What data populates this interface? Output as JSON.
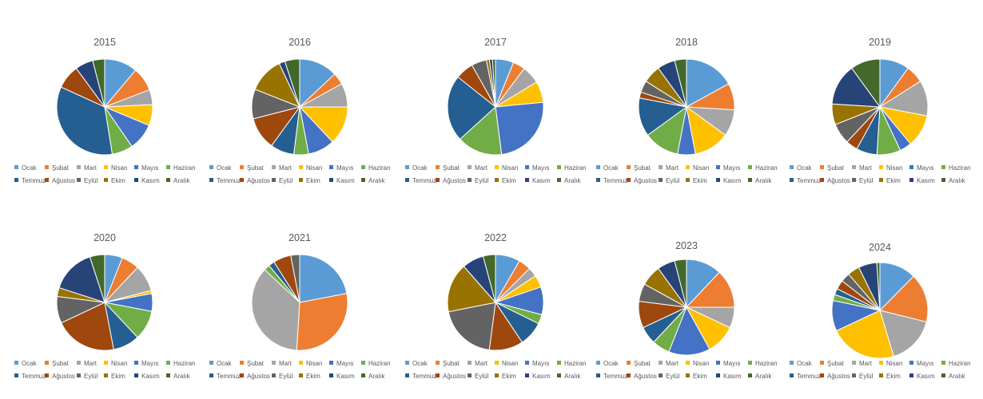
{
  "months": [
    "Ocak",
    "Şubat",
    "Mart",
    "Nisan",
    "Mayıs",
    "Haziran",
    "Temmuz",
    "Ağustos",
    "Eylül",
    "Ekim",
    "Kasım",
    "Aralık"
  ],
  "colors": [
    "#5B9BD5",
    "#ED7D31",
    "#A5A5A5",
    "#FFC000",
    "#4472C4",
    "#70AD47",
    "#255E91",
    "#9E480E",
    "#636363",
    "#997300",
    "#264478",
    "#43682B"
  ],
  "chart_data": [
    {
      "type": "pie",
      "title": "2015",
      "categories": [
        "Ocak",
        "Şubat",
        "Mart",
        "Nisan",
        "Mayıs",
        "Haziran",
        "Temmuz",
        "Ağustos",
        "Eylül",
        "Ekim",
        "Kasım",
        "Aralık"
      ],
      "values": [
        11,
        8,
        5,
        7,
        9,
        7,
        34,
        8,
        0,
        0,
        6,
        4
      ]
    },
    {
      "type": "pie",
      "title": "2016",
      "categories": [
        "Ocak",
        "Şubat",
        "Mart",
        "Nisan",
        "Mayıs",
        "Haziran",
        "Temmuz",
        "Ağustos",
        "Eylül",
        "Ekim",
        "Kasım",
        "Aralık"
      ],
      "values": [
        13,
        4,
        8,
        13,
        9,
        5,
        8,
        11,
        10,
        12,
        2,
        5
      ]
    },
    {
      "type": "pie",
      "title": "2017",
      "categories": [
        "Ocak",
        "Şubat",
        "Mart",
        "Nisan",
        "Mayıs",
        "Haziran",
        "Temmuz",
        "Ağustos",
        "Eylül",
        "Ekim",
        "Kasım",
        "Aralık"
      ],
      "values": [
        6,
        4,
        6,
        7,
        24,
        15,
        22,
        6,
        5,
        1,
        1,
        1
      ]
    },
    {
      "type": "pie",
      "title": "2018",
      "categories": [
        "Ocak",
        "Şubat",
        "Mart",
        "Nisan",
        "Mayıs",
        "Haziran",
        "Temmuz",
        "Ağustos",
        "Eylül",
        "Ekim",
        "Kasım",
        "Aralık"
      ],
      "values": [
        17,
        9,
        9,
        12,
        6,
        12,
        13,
        2,
        4,
        6,
        6,
        4
      ]
    },
    {
      "type": "pie",
      "title": "2019",
      "categories": [
        "Ocak",
        "Şubat",
        "Mart",
        "Nisan",
        "Mayıs",
        "Haziran",
        "Temmuz",
        "Ağustos",
        "Eylül",
        "Ekim",
        "Kasım",
        "Aralık"
      ],
      "values": [
        10,
        6,
        12,
        11,
        4,
        8,
        7,
        4,
        7,
        7,
        14,
        10
      ]
    },
    {
      "type": "pie",
      "title": "2020",
      "categories": [
        "Ocak",
        "Şubat",
        "Mart",
        "Nisan",
        "Mayıs",
        "Haziran",
        "Temmuz",
        "Ağustos",
        "Eylül",
        "Ekim",
        "Kasım",
        "Aralık"
      ],
      "values": [
        6,
        6,
        9,
        1,
        6,
        10,
        9,
        21,
        9,
        3,
        15,
        5
      ]
    },
    {
      "type": "pie",
      "title": "2021",
      "categories": [
        "Ocak",
        "Şubat",
        "Mart",
        "Nisan",
        "Mayıs",
        "Haziran",
        "Temmuz",
        "Ağustos",
        "Eylül",
        "Ekim",
        "Kasım",
        "Aralık"
      ],
      "values": [
        22,
        29,
        36,
        0,
        0,
        2,
        2,
        6,
        3,
        0,
        0,
        0
      ]
    },
    {
      "type": "pie",
      "title": "2022",
      "categories": [
        "Ocak",
        "Şubat",
        "Mart",
        "Nisan",
        "Mayıs",
        "Haziran",
        "Temmuz",
        "Ağustos",
        "Eylül",
        "Ekim",
        "Kasım",
        "Aralık"
      ],
      "values": [
        8,
        4,
        3,
        4,
        9,
        3,
        8,
        11,
        19,
        16,
        7,
        4
      ]
    },
    {
      "type": "pie",
      "title": "2023",
      "categories": [
        "Ocak",
        "Şubat",
        "Mart",
        "Nisan",
        "Mayıs",
        "Haziran",
        "Temmuz",
        "Ağustos",
        "Eylül",
        "Ekim",
        "Kasım",
        "Aralık"
      ],
      "values": [
        12,
        13,
        7,
        10,
        14,
        6,
        6,
        9,
        6,
        7,
        6,
        4
      ]
    },
    {
      "type": "pie",
      "title": "2024",
      "categories": [
        "Ocak",
        "Şubat",
        "Mart",
        "Nisan",
        "Mayıs",
        "Haziran",
        "Temmuz",
        "Ağustos",
        "Eylül",
        "Ekim",
        "Kasım",
        "Aralık"
      ],
      "values": [
        12,
        16,
        16,
        22,
        10,
        2,
        2,
        3,
        3,
        4,
        6,
        1
      ]
    }
  ]
}
